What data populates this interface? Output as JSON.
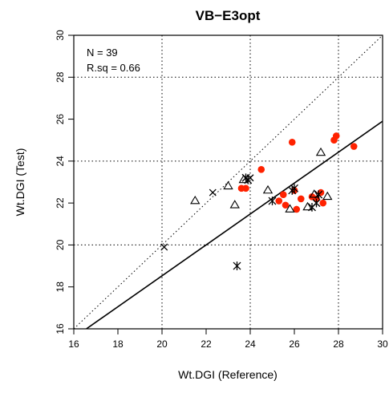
{
  "chart_data": {
    "type": "scatter",
    "title": "VB−E3opt",
    "xlabel": "Wt.DGI (Reference)",
    "ylabel": "Wt.DGI (Test)",
    "xlim": [
      16,
      30
    ],
    "ylim": [
      16,
      30
    ],
    "x_ticks": [
      16,
      18,
      20,
      22,
      24,
      26,
      28,
      30
    ],
    "y_ticks": [
      16,
      18,
      20,
      22,
      24,
      26,
      28,
      30
    ],
    "grid": {
      "x": [
        20,
        24,
        28
      ],
      "y": [
        20,
        24,
        28
      ],
      "style": "dotted"
    },
    "annotations": [
      "N = 39",
      "R.sq = 0.66"
    ],
    "reference_line": {
      "type": "identity",
      "style": "dotted"
    },
    "fit_line": {
      "x": [
        16.3,
        30
      ],
      "y": [
        15.8,
        25.9
      ],
      "style": "solid"
    },
    "colors": {
      "circle": "#ff2200",
      "marker": "#000000"
    },
    "series": [
      {
        "marker": "circle-filled",
        "color": "#ff2200",
        "points": [
          [
            23.6,
            22.7
          ],
          [
            23.8,
            22.7
          ],
          [
            24.5,
            23.6
          ],
          [
            25.3,
            22.1
          ],
          [
            25.5,
            22.4
          ],
          [
            25.6,
            21.9
          ],
          [
            25.9,
            24.9
          ],
          [
            26.0,
            22.6
          ],
          [
            26.1,
            21.7
          ],
          [
            26.3,
            22.2
          ],
          [
            26.8,
            22.3
          ],
          [
            27.0,
            22.2
          ],
          [
            27.2,
            22.5
          ],
          [
            27.3,
            22.0
          ],
          [
            27.8,
            25.0
          ],
          [
            27.9,
            25.2
          ],
          [
            28.7,
            24.7
          ]
        ]
      },
      {
        "marker": "triangle-open",
        "color": "#000000",
        "points": [
          [
            21.5,
            22.1
          ],
          [
            23.0,
            22.8
          ],
          [
            23.3,
            21.9
          ],
          [
            23.7,
            23.1
          ],
          [
            24.8,
            22.6
          ],
          [
            25.8,
            21.7
          ],
          [
            26.6,
            21.8
          ],
          [
            26.9,
            22.4
          ],
          [
            27.2,
            24.4
          ],
          [
            27.5,
            22.3
          ]
        ]
      },
      {
        "marker": "cross",
        "color": "#000000",
        "points": [
          [
            20.1,
            19.9
          ],
          [
            22.3,
            22.5
          ],
          [
            24.0,
            23.2
          ]
        ]
      },
      {
        "marker": "asterisk",
        "color": "#000000",
        "points": [
          [
            23.4,
            19.0
          ],
          [
            23.8,
            23.2
          ],
          [
            23.9,
            23.1
          ],
          [
            25.0,
            22.1
          ],
          [
            25.9,
            22.6
          ],
          [
            26.8,
            21.8
          ],
          [
            27.0,
            22.0
          ],
          [
            26.0,
            22.7
          ],
          [
            27.1,
            22.4
          ]
        ]
      }
    ]
  }
}
